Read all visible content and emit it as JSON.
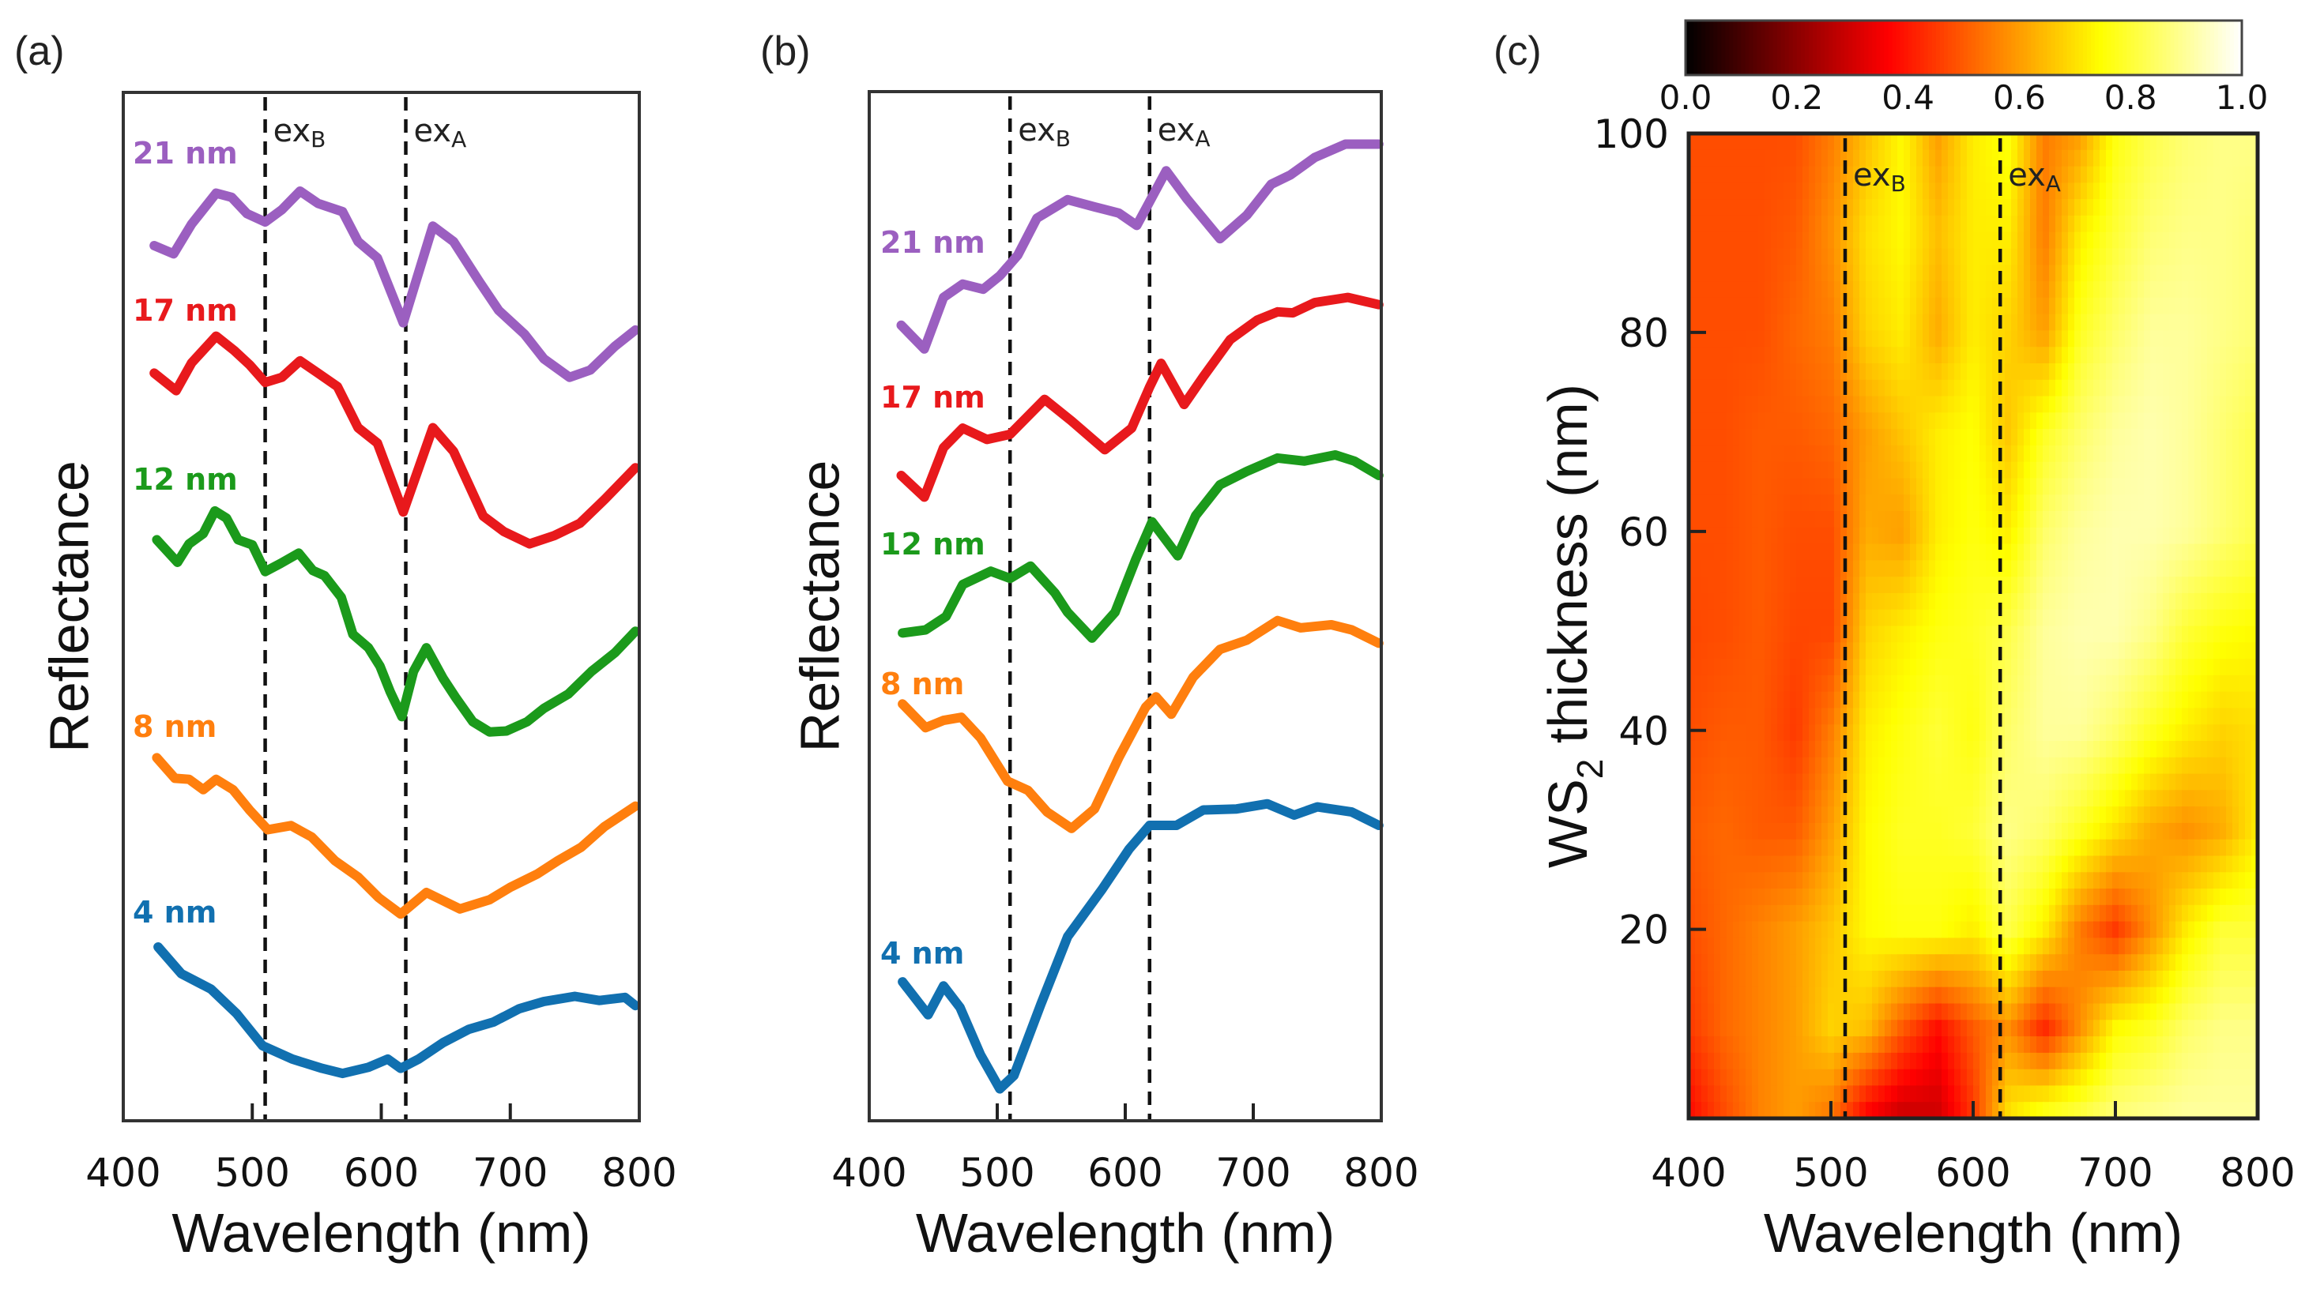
{
  "chart_data": [
    {
      "type": "line",
      "panel_label": "(a)",
      "xlabel": "Wavelength (nm)",
      "ylabel": "Reflectance",
      "xlim": [
        400,
        800
      ],
      "ylim": [
        0,
        1
      ],
      "y_axis_note_units": "relative (offset curves, no y tick labels)",
      "xticks": [
        400,
        500,
        600,
        700,
        800
      ],
      "xtick_labels": [
        "400",
        "500",
        "600",
        "700",
        "800"
      ],
      "grid": false,
      "vlines": [
        {
          "x": 510,
          "label": "ex",
          "label_sub": "B"
        },
        {
          "x": 619,
          "label": "ex",
          "label_sub": "A"
        }
      ],
      "series": [
        {
          "name": "21 nm",
          "color": "#9b5fc0",
          "x": [
            424,
            439,
            453,
            472,
            484,
            496,
            510,
            523,
            537,
            551,
            570,
            582,
            597,
            617,
            640,
            656,
            676,
            691,
            711,
            726,
            746,
            762,
            781,
            797
          ],
          "y": [
            0.851,
            0.843,
            0.872,
            0.902,
            0.898,
            0.882,
            0.874,
            0.886,
            0.904,
            0.892,
            0.884,
            0.855,
            0.839,
            0.776,
            0.87,
            0.855,
            0.816,
            0.788,
            0.765,
            0.741,
            0.723,
            0.73,
            0.753,
            0.769
          ]
        },
        {
          "name": "17 nm",
          "color": "#e8191c",
          "x": [
            424,
            441,
            453,
            472,
            486,
            498,
            510,
            523,
            537,
            551,
            566,
            582,
            597,
            617,
            640,
            656,
            679,
            695,
            715,
            734,
            754,
            773,
            797
          ],
          "y": [
            0.727,
            0.71,
            0.737,
            0.763,
            0.749,
            0.735,
            0.718,
            0.723,
            0.739,
            0.727,
            0.714,
            0.674,
            0.659,
            0.592,
            0.674,
            0.651,
            0.588,
            0.573,
            0.561,
            0.569,
            0.581,
            0.604,
            0.635
          ]
        },
        {
          "name": "12 nm",
          "color": "#1b9a1b",
          "x": [
            426,
            442,
            451,
            462,
            471,
            480,
            489,
            500,
            510,
            522,
            536,
            547,
            556,
            569,
            578,
            590,
            599,
            607,
            616,
            625,
            635,
            648,
            658,
            671,
            684,
            697,
            713,
            726,
            745,
            763,
            781,
            797
          ],
          "y": [
            0.565,
            0.543,
            0.561,
            0.571,
            0.593,
            0.586,
            0.565,
            0.56,
            0.534,
            0.542,
            0.552,
            0.535,
            0.53,
            0.509,
            0.473,
            0.46,
            0.442,
            0.417,
            0.393,
            0.437,
            0.46,
            0.43,
            0.411,
            0.388,
            0.378,
            0.379,
            0.388,
            0.401,
            0.415,
            0.437,
            0.455,
            0.476
          ]
        },
        {
          "name": "8 nm",
          "color": "#ff7f0e",
          "x": [
            426,
            440,
            451,
            462,
            472,
            485,
            498,
            512,
            530,
            546,
            564,
            582,
            598,
            615,
            635,
            661,
            684,
            700,
            721,
            737,
            755,
            773,
            797
          ],
          "y": [
            0.353,
            0.333,
            0.332,
            0.322,
            0.332,
            0.322,
            0.302,
            0.283,
            0.287,
            0.276,
            0.253,
            0.237,
            0.217,
            0.201,
            0.222,
            0.206,
            0.215,
            0.227,
            0.24,
            0.253,
            0.266,
            0.286,
            0.306
          ]
        },
        {
          "name": "4 nm",
          "color": "#1170b0",
          "x": [
            427,
            445,
            468,
            488,
            508,
            531,
            554,
            570,
            590,
            605,
            615,
            629,
            648,
            668,
            687,
            707,
            726,
            750,
            769,
            789,
            797
          ],
          "y": [
            0.169,
            0.143,
            0.128,
            0.104,
            0.073,
            0.06,
            0.051,
            0.046,
            0.052,
            0.06,
            0.051,
            0.06,
            0.076,
            0.089,
            0.096,
            0.109,
            0.116,
            0.121,
            0.117,
            0.12,
            0.112
          ]
        }
      ]
    },
    {
      "type": "line",
      "panel_label": "(b)",
      "xlabel": "Wavelength (nm)",
      "ylabel": "Reflectance",
      "xlim": [
        400,
        800
      ],
      "ylim": [
        0,
        1
      ],
      "xticks": [
        400,
        500,
        600,
        700,
        800
      ],
      "xtick_labels": [
        "400",
        "500",
        "600",
        "700",
        "800"
      ],
      "grid": false,
      "vlines": [
        {
          "x": 510,
          "label": "ex",
          "label_sub": "B"
        },
        {
          "x": 619,
          "label": "ex",
          "label_sub": "A"
        }
      ],
      "series": [
        {
          "name": "21 nm",
          "color": "#9b5fc0",
          "x": [
            425,
            443,
            458,
            473,
            489,
            502,
            516,
            531,
            555,
            576,
            595,
            609,
            619,
            632,
            648,
            674,
            695,
            714,
            729,
            748,
            772,
            798
          ],
          "y": [
            0.773,
            0.75,
            0.8,
            0.813,
            0.808,
            0.821,
            0.841,
            0.877,
            0.895,
            0.888,
            0.882,
            0.87,
            0.893,
            0.923,
            0.896,
            0.857,
            0.88,
            0.91,
            0.919,
            0.936,
            0.949,
            0.949
          ]
        },
        {
          "name": "17 nm",
          "color": "#e8191c",
          "x": [
            425,
            443,
            458,
            473,
            492,
            510,
            537,
            558,
            584,
            605,
            619,
            628,
            646,
            661,
            682,
            703,
            719,
            731,
            748,
            774,
            798
          ],
          "y": [
            0.627,
            0.606,
            0.654,
            0.673,
            0.662,
            0.667,
            0.701,
            0.68,
            0.652,
            0.673,
            0.713,
            0.736,
            0.696,
            0.723,
            0.759,
            0.778,
            0.786,
            0.785,
            0.795,
            0.8,
            0.793
          ]
        },
        {
          "name": "12 nm",
          "color": "#1b9a1b",
          "x": [
            426,
            444,
            460,
            473,
            495,
            510,
            526,
            545,
            555,
            574,
            592,
            608,
            621,
            641,
            655,
            674,
            695,
            719,
            740,
            764,
            779,
            798
          ],
          "y": [
            0.474,
            0.477,
            0.49,
            0.521,
            0.534,
            0.527,
            0.539,
            0.513,
            0.494,
            0.469,
            0.494,
            0.545,
            0.582,
            0.549,
            0.588,
            0.618,
            0.631,
            0.644,
            0.641,
            0.647,
            0.641,
            0.627
          ]
        },
        {
          "name": "8 nm",
          "color": "#ff7f0e",
          "x": [
            426,
            444,
            458,
            472,
            487,
            508,
            524,
            539,
            558,
            576,
            595,
            616,
            624,
            636,
            653,
            674,
            695,
            719,
            737,
            761,
            777,
            798
          ],
          "y": [
            0.405,
            0.382,
            0.389,
            0.392,
            0.372,
            0.33,
            0.321,
            0.3,
            0.284,
            0.303,
            0.353,
            0.402,
            0.412,
            0.395,
            0.431,
            0.458,
            0.467,
            0.486,
            0.479,
            0.482,
            0.477,
            0.464
          ]
        },
        {
          "name": "4 nm",
          "color": "#1170b0",
          "x": [
            426,
            446,
            458,
            471,
            487,
            502,
            513,
            534,
            555,
            582,
            603,
            619,
            640,
            661,
            687,
            711,
            732,
            750,
            777,
            798
          ],
          "y": [
            0.135,
            0.103,
            0.131,
            0.11,
            0.064,
            0.031,
            0.044,
            0.113,
            0.179,
            0.225,
            0.264,
            0.287,
            0.287,
            0.302,
            0.303,
            0.308,
            0.297,
            0.305,
            0.3,
            0.287
          ]
        }
      ]
    },
    {
      "type": "heatmap",
      "panel_label": "(c)",
      "xlabel": "Wavelength (nm)",
      "ylabel": "WS",
      "ylabel_sub": "2",
      "ylabel_rest": " thickness (nm)",
      "xlim": [
        400,
        800
      ],
      "ylim": [
        1,
        100
      ],
      "xticks": [
        400,
        500,
        600,
        700,
        800
      ],
      "xtick_labels": [
        "400",
        "500",
        "600",
        "700",
        "800"
      ],
      "yticks": [
        20,
        40,
        60,
        80,
        100
      ],
      "ytick_labels": [
        "20",
        "40",
        "60",
        "80",
        "100"
      ],
      "colormap": "hot",
      "colorbar": {
        "range": [
          0.0,
          1.0
        ],
        "ticks": [
          0.0,
          0.2,
          0.4,
          0.6,
          0.8,
          1.0
        ],
        "tick_labels": [
          "0.0",
          "0.2",
          "0.4",
          "0.6",
          "0.8",
          "1.0"
        ],
        "placement": "top"
      },
      "vlines": [
        {
          "x": 510,
          "label": "ex",
          "label_sub": "B"
        },
        {
          "x": 619,
          "label": "ex",
          "label_sub": "A"
        }
      ],
      "wavelengths": [
        400,
        425,
        450,
        475,
        500,
        525,
        550,
        575,
        600,
        625,
        650,
        675,
        700,
        725,
        750,
        775,
        800
      ],
      "thickness": [
        2,
        10,
        20,
        30,
        40,
        50,
        60,
        70,
        80,
        90,
        100
      ],
      "values": [
        [
          0.38,
          0.48,
          0.56,
          0.6,
          0.55,
          0.38,
          0.3,
          0.3,
          0.45,
          0.7,
          0.76,
          0.8,
          0.86,
          0.88,
          0.9,
          0.9,
          0.9
        ],
        [
          0.45,
          0.52,
          0.56,
          0.6,
          0.68,
          0.65,
          0.5,
          0.38,
          0.5,
          0.58,
          0.42,
          0.58,
          0.74,
          0.78,
          0.85,
          0.88,
          0.88
        ],
        [
          0.48,
          0.52,
          0.56,
          0.6,
          0.66,
          0.74,
          0.76,
          0.76,
          0.72,
          0.82,
          0.72,
          0.55,
          0.45,
          0.58,
          0.72,
          0.8,
          0.8
        ],
        [
          0.5,
          0.52,
          0.5,
          0.5,
          0.6,
          0.74,
          0.78,
          0.78,
          0.8,
          0.88,
          0.85,
          0.78,
          0.7,
          0.62,
          0.58,
          0.62,
          0.72
        ],
        [
          0.48,
          0.5,
          0.5,
          0.45,
          0.55,
          0.72,
          0.76,
          0.8,
          0.76,
          0.85,
          0.9,
          0.9,
          0.85,
          0.78,
          0.72,
          0.68,
          0.7
        ],
        [
          0.47,
          0.48,
          0.5,
          0.47,
          0.47,
          0.68,
          0.72,
          0.76,
          0.78,
          0.82,
          0.9,
          0.92,
          0.92,
          0.88,
          0.8,
          0.76,
          0.74
        ],
        [
          0.48,
          0.48,
          0.5,
          0.48,
          0.48,
          0.62,
          0.6,
          0.72,
          0.76,
          0.72,
          0.85,
          0.9,
          0.92,
          0.92,
          0.9,
          0.86,
          0.82
        ],
        [
          0.48,
          0.48,
          0.5,
          0.5,
          0.52,
          0.6,
          0.66,
          0.72,
          0.75,
          0.66,
          0.78,
          0.85,
          0.9,
          0.92,
          0.9,
          0.86,
          0.82
        ],
        [
          0.48,
          0.48,
          0.48,
          0.52,
          0.55,
          0.68,
          0.72,
          0.62,
          0.72,
          0.68,
          0.6,
          0.78,
          0.85,
          0.9,
          0.9,
          0.88,
          0.86
        ],
        [
          0.48,
          0.48,
          0.48,
          0.5,
          0.58,
          0.7,
          0.74,
          0.65,
          0.72,
          0.72,
          0.55,
          0.72,
          0.8,
          0.86,
          0.88,
          0.88,
          0.86
        ],
        [
          0.48,
          0.48,
          0.48,
          0.48,
          0.55,
          0.65,
          0.74,
          0.6,
          0.72,
          0.76,
          0.55,
          0.6,
          0.76,
          0.82,
          0.86,
          0.88,
          0.88
        ]
      ]
    }
  ]
}
